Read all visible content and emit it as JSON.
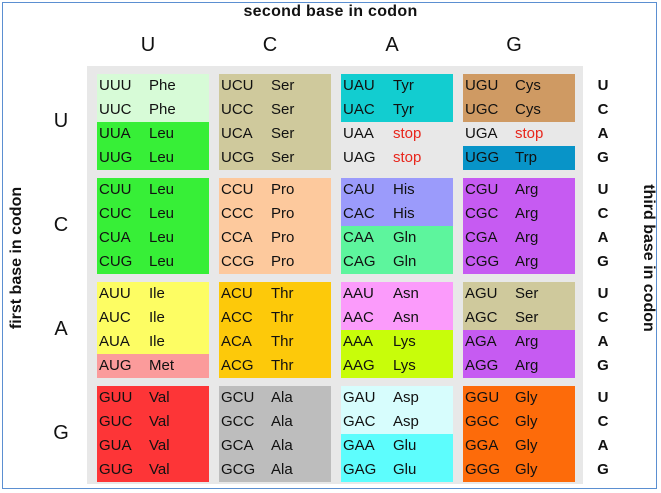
{
  "titles": {
    "top": "second base in codon",
    "left": "first base in codon",
    "right": "third base in codon"
  },
  "bases": [
    "U",
    "C",
    "A",
    "G"
  ],
  "rows": [
    {
      "first": "U",
      "groups": [
        {
          "cells": [
            {
              "codon": "UUU",
              "aa": "Phe",
              "color": "#d7fbd7"
            },
            {
              "codon": "UUC",
              "aa": "Phe",
              "color": "#d7fbd7"
            },
            {
              "codon": "UUA",
              "aa": "Leu",
              "color": "#37ef37"
            },
            {
              "codon": "UUG",
              "aa": "Leu",
              "color": "#37ef37"
            }
          ]
        },
        {
          "cells": [
            {
              "codon": "UCU",
              "aa": "Ser",
              "color": "#cfc99c"
            },
            {
              "codon": "UCC",
              "aa": "Ser",
              "color": "#cfc99c"
            },
            {
              "codon": "UCA",
              "aa": "Ser",
              "color": "#cfc99c"
            },
            {
              "codon": "UCG",
              "aa": "Ser",
              "color": "#cfc99c"
            }
          ]
        },
        {
          "cells": [
            {
              "codon": "UAU",
              "aa": "Tyr",
              "color": "#12cdd0"
            },
            {
              "codon": "UAC",
              "aa": "Tyr",
              "color": "#12cdd0"
            },
            {
              "codon": "UAA",
              "aa": "stop",
              "color": "#e8e8e8",
              "stop": true
            },
            {
              "codon": "UAG",
              "aa": "stop",
              "color": "#e8e8e8",
              "stop": true
            }
          ]
        },
        {
          "cells": [
            {
              "codon": "UGU",
              "aa": "Cys",
              "color": "#cf9a63"
            },
            {
              "codon": "UGC",
              "aa": "Cys",
              "color": "#cf9a63"
            },
            {
              "codon": "UGA",
              "aa": "stop",
              "color": "#e8e8e8",
              "stop": true
            },
            {
              "codon": "UGG",
              "aa": "Trp",
              "color": "#0894c8"
            }
          ]
        }
      ]
    },
    {
      "first": "C",
      "groups": [
        {
          "cells": [
            {
              "codon": "CUU",
              "aa": "Leu",
              "color": "#37ef37"
            },
            {
              "codon": "CUC",
              "aa": "Leu",
              "color": "#37ef37"
            },
            {
              "codon": "CUA",
              "aa": "Leu",
              "color": "#37ef37"
            },
            {
              "codon": "CUG",
              "aa": "Leu",
              "color": "#37ef37"
            }
          ]
        },
        {
          "cells": [
            {
              "codon": "CCU",
              "aa": "Pro",
              "color": "#fdc99d"
            },
            {
              "codon": "CCC",
              "aa": "Pro",
              "color": "#fdc99d"
            },
            {
              "codon": "CCA",
              "aa": "Pro",
              "color": "#fdc99d"
            },
            {
              "codon": "CCG",
              "aa": "Pro",
              "color": "#fdc99d"
            }
          ]
        },
        {
          "cells": [
            {
              "codon": "CAU",
              "aa": "His",
              "color": "#9b9bfb"
            },
            {
              "codon": "CAC",
              "aa": "His",
              "color": "#9b9bfb"
            },
            {
              "codon": "CAA",
              "aa": "Gln",
              "color": "#5df59d"
            },
            {
              "codon": "CAG",
              "aa": "Gln",
              "color": "#5df59d"
            }
          ]
        },
        {
          "cells": [
            {
              "codon": "CGU",
              "aa": "Arg",
              "color": "#c65bf2"
            },
            {
              "codon": "CGC",
              "aa": "Arg",
              "color": "#c65bf2"
            },
            {
              "codon": "CGA",
              "aa": "Arg",
              "color": "#c65bf2"
            },
            {
              "codon": "CGG",
              "aa": "Arg",
              "color": "#c65bf2"
            }
          ]
        }
      ]
    },
    {
      "first": "A",
      "groups": [
        {
          "cells": [
            {
              "codon": "AUU",
              "aa": "Ile",
              "color": "#fdfd63"
            },
            {
              "codon": "AUC",
              "aa": "Ile",
              "color": "#fdfd63"
            },
            {
              "codon": "AUA",
              "aa": "Ile",
              "color": "#fdfd63"
            },
            {
              "codon": "AUG",
              "aa": "Met",
              "color": "#fb9b9b"
            }
          ]
        },
        {
          "cells": [
            {
              "codon": "ACU",
              "aa": "Thr",
              "color": "#fdc90a"
            },
            {
              "codon": "ACC",
              "aa": "Thr",
              "color": "#fdc90a"
            },
            {
              "codon": "ACA",
              "aa": "Thr",
              "color": "#fdc90a"
            },
            {
              "codon": "ACG",
              "aa": "Thr",
              "color": "#fdc90a"
            }
          ]
        },
        {
          "cells": [
            {
              "codon": "AAU",
              "aa": "Asn",
              "color": "#fb9bfb"
            },
            {
              "codon": "AAC",
              "aa": "Asn",
              "color": "#fb9bfb"
            },
            {
              "codon": "AAA",
              "aa": "Lys",
              "color": "#c8fd0a"
            },
            {
              "codon": "AAG",
              "aa": "Lys",
              "color": "#c8fd0a"
            }
          ]
        },
        {
          "cells": [
            {
              "codon": "AGU",
              "aa": "Ser",
              "color": "#cfc99c"
            },
            {
              "codon": "AGC",
              "aa": "Ser",
              "color": "#cfc99c"
            },
            {
              "codon": "AGA",
              "aa": "Arg",
              "color": "#c65bf2"
            },
            {
              "codon": "AGG",
              "aa": "Arg",
              "color": "#c65bf2"
            }
          ]
        }
      ]
    },
    {
      "first": "G",
      "groups": [
        {
          "cells": [
            {
              "codon": "GUU",
              "aa": "Val",
              "color": "#fd3537"
            },
            {
              "codon": "GUC",
              "aa": "Val",
              "color": "#fd3537"
            },
            {
              "codon": "GUA",
              "aa": "Val",
              "color": "#fd3537"
            },
            {
              "codon": "GUG",
              "aa": "Val",
              "color": "#fd3537"
            }
          ]
        },
        {
          "cells": [
            {
              "codon": "GCU",
              "aa": "Ala",
              "color": "#bdbdbd"
            },
            {
              "codon": "GCC",
              "aa": "Ala",
              "color": "#bdbdbd"
            },
            {
              "codon": "GCA",
              "aa": "Ala",
              "color": "#bdbdbd"
            },
            {
              "codon": "GCG",
              "aa": "Ala",
              "color": "#bdbdbd"
            }
          ]
        },
        {
          "cells": [
            {
              "codon": "GAU",
              "aa": "Asp",
              "color": "#d7fdfd"
            },
            {
              "codon": "GAC",
              "aa": "Asp",
              "color": "#d7fdfd"
            },
            {
              "codon": "GAA",
              "aa": "Glu",
              "color": "#5dfdfd"
            },
            {
              "codon": "GAG",
              "aa": "Glu",
              "color": "#5dfdfd"
            }
          ]
        },
        {
          "cells": [
            {
              "codon": "GGU",
              "aa": "Gly",
              "color": "#fd6b0a"
            },
            {
              "codon": "GGC",
              "aa": "Gly",
              "color": "#fd6b0a"
            },
            {
              "codon": "GGA",
              "aa": "Gly",
              "color": "#fd6b0a"
            },
            {
              "codon": "GGG",
              "aa": "Gly",
              "color": "#fd6b0a"
            }
          ]
        }
      ]
    }
  ]
}
